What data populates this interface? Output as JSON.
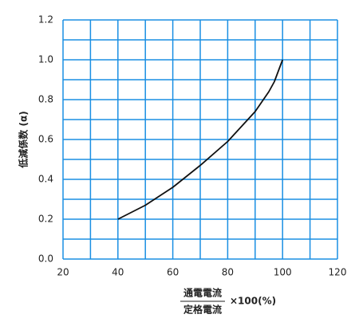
{
  "chart_data": {
    "type": "line",
    "x_label": {
      "numerator": "通電電流",
      "denominator": "定格電流",
      "suffix": "×100(%)"
    },
    "y_label": "低減係数 (α)",
    "x": [
      40,
      50,
      60,
      70,
      80,
      90,
      95,
      97,
      100
    ],
    "series": [
      {
        "name": "低減係数",
        "color": "#111111",
        "values": [
          0.2,
          0.27,
          0.36,
          0.47,
          0.59,
          0.74,
          0.84,
          0.89,
          1.0
        ]
      }
    ],
    "xlim": [
      20,
      120
    ],
    "xticks": [
      20,
      40,
      60,
      80,
      100,
      120
    ],
    "ylim": [
      0,
      1.2
    ],
    "yticks": [
      {
        "value": 0,
        "label": "0.0"
      },
      0.2,
      0.4,
      0.6,
      0.8,
      {
        "value": 1,
        "label": "1.0"
      },
      1.2
    ],
    "xgrid": [
      20,
      30,
      40,
      50,
      60,
      70,
      80,
      90,
      100,
      110,
      120
    ],
    "ygrid": [
      0,
      0.1,
      0.2,
      0.3,
      0.4,
      0.5,
      0.6,
      0.7,
      0.8,
      0.9,
      1.0,
      1.1,
      1.2
    ],
    "grid_color": "#1a8fe3"
  }
}
